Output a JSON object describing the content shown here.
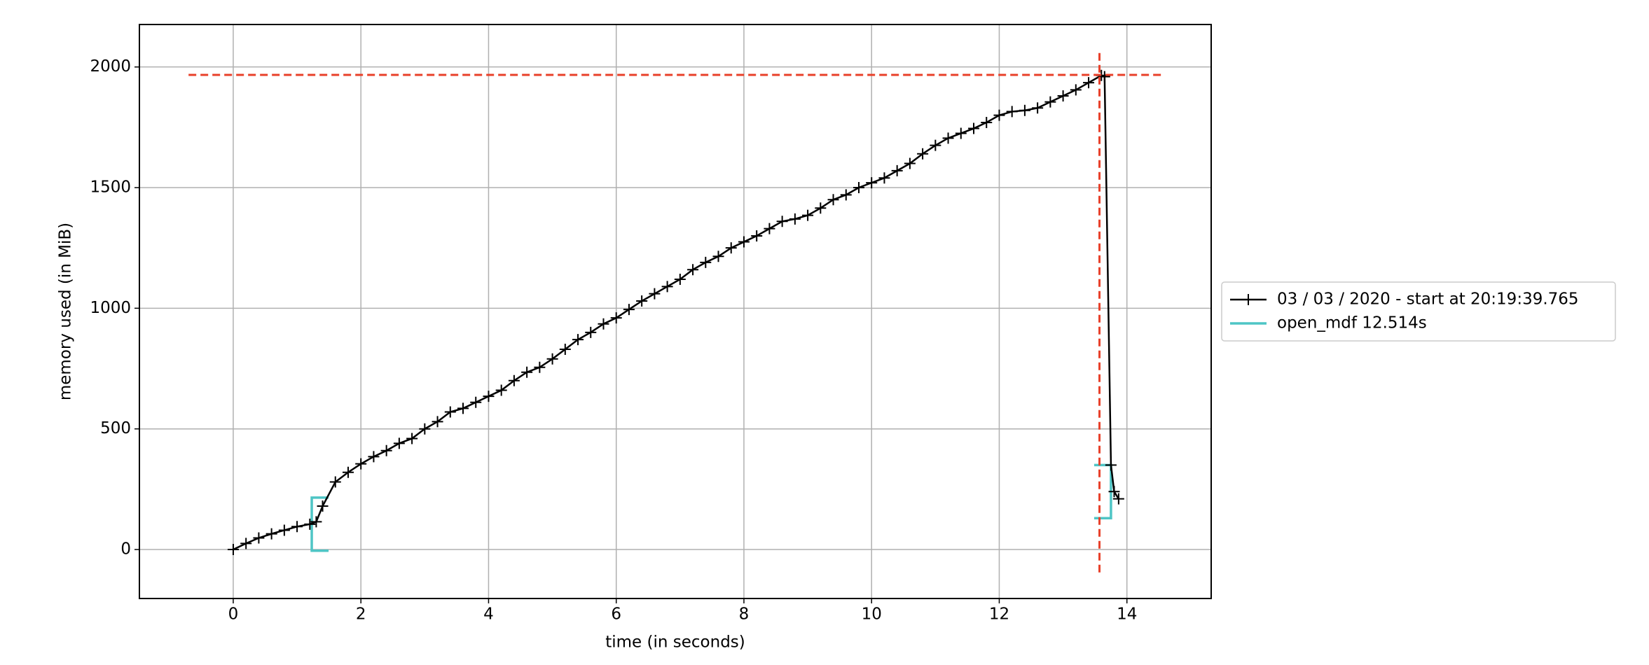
{
  "chart_data": {
    "type": "line",
    "xlabel": "time (in seconds)",
    "ylabel": "memory used (in MiB)",
    "xlim": [
      -1.47,
      15.32
    ],
    "ylim": [
      -203,
      2176
    ],
    "xticks": [
      0,
      2,
      4,
      6,
      8,
      10,
      12,
      14
    ],
    "yticks": [
      0,
      500,
      1000,
      1500,
      2000
    ],
    "grid": true,
    "legend": "right",
    "series": [
      {
        "name": "03 / 03 / 2020 - start at 20:19:39.765",
        "color": "#000000",
        "x": [
          0,
          0.2,
          0.4,
          0.6,
          0.8,
          1.0,
          1.2,
          1.3,
          1.4,
          1.6,
          1.8,
          2.0,
          2.2,
          2.4,
          2.6,
          2.8,
          3.0,
          3.2,
          3.4,
          3.6,
          3.8,
          4.0,
          4.2,
          4.4,
          4.6,
          4.8,
          5.0,
          5.2,
          5.4,
          5.6,
          5.8,
          6.0,
          6.2,
          6.4,
          6.6,
          6.8,
          7.0,
          7.2,
          7.4,
          7.6,
          7.8,
          8.0,
          8.2,
          8.4,
          8.6,
          8.8,
          9.0,
          9.2,
          9.4,
          9.6,
          9.8,
          10.0,
          10.2,
          10.4,
          10.6,
          10.8,
          11.0,
          11.2,
          11.4,
          11.6,
          11.8,
          12.0,
          12.2,
          12.4,
          12.6,
          12.8,
          13.0,
          13.2,
          13.4,
          13.6,
          13.65,
          13.75,
          13.8,
          13.87
        ],
        "values": [
          0,
          25,
          48,
          65,
          80,
          95,
          105,
          115,
          180,
          280,
          320,
          355,
          385,
          410,
          440,
          460,
          500,
          530,
          570,
          585,
          610,
          635,
          660,
          700,
          735,
          755,
          790,
          830,
          870,
          900,
          935,
          960,
          995,
          1030,
          1060,
          1090,
          1120,
          1160,
          1190,
          1215,
          1250,
          1275,
          1300,
          1330,
          1360,
          1370,
          1385,
          1415,
          1450,
          1470,
          1500,
          1520,
          1540,
          1570,
          1600,
          1640,
          1675,
          1705,
          1725,
          1745,
          1770,
          1800,
          1815,
          1820,
          1830,
          1855,
          1880,
          1905,
          1935,
          1965,
          1960,
          350,
          240,
          210
        ]
      }
    ],
    "function": {
      "name": "open_mdf 12.514s",
      "color": "#4ec5c5",
      "start": {
        "x": 1.23,
        "ymin": -5,
        "ymax": 215
      },
      "end": {
        "x": 13.75,
        "ymin": 130,
        "ymax": 350
      }
    },
    "max_lines": {
      "color": "#e8402a",
      "y": 1967,
      "y_span": [
        -0.7,
        14.55
      ],
      "x": 13.57,
      "x_span": [
        -95,
        2065
      ]
    }
  }
}
